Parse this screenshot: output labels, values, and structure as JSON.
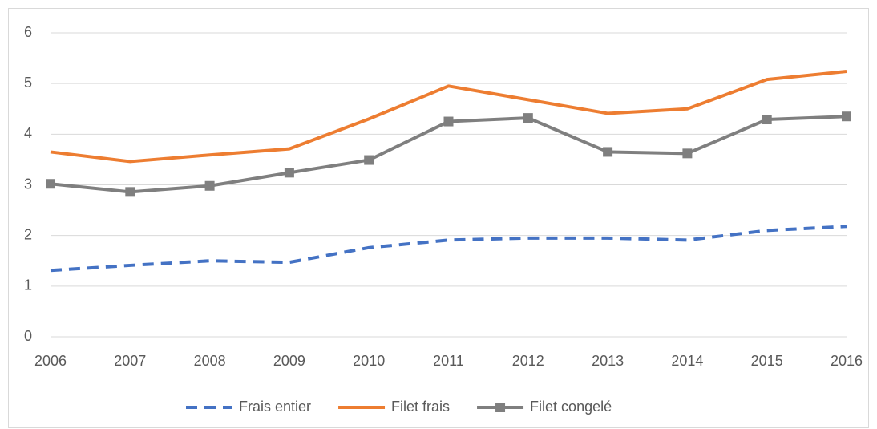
{
  "chart_data": {
    "type": "line",
    "categories": [
      "2006",
      "2007",
      "2008",
      "2009",
      "2010",
      "2011",
      "2012",
      "2013",
      "2014",
      "2015",
      "2016"
    ],
    "series": [
      {
        "name": "Frais entier",
        "color": "#4472c4",
        "dash": true,
        "marker": null,
        "values": [
          1.31,
          1.41,
          1.5,
          1.47,
          1.76,
          1.91,
          1.95,
          1.95,
          1.91,
          2.1,
          2.18
        ]
      },
      {
        "name": "Filet frais",
        "color": "#ed7d31",
        "dash": false,
        "marker": null,
        "values": [
          3.65,
          3.46,
          3.59,
          3.71,
          4.3,
          4.95,
          4.68,
          4.41,
          4.5,
          5.08,
          5.24
        ]
      },
      {
        "name": "Filet congelé",
        "color": "#7f7f7f",
        "dash": false,
        "marker": "square",
        "values": [
          3.02,
          2.86,
          2.98,
          3.24,
          3.49,
          4.25,
          4.32,
          3.65,
          3.62,
          4.29,
          4.35
        ]
      }
    ],
    "ylim": [
      0,
      6
    ],
    "yticks": [
      0,
      1,
      2,
      3,
      4,
      5,
      6
    ],
    "grid": true,
    "legend": "bottom"
  }
}
